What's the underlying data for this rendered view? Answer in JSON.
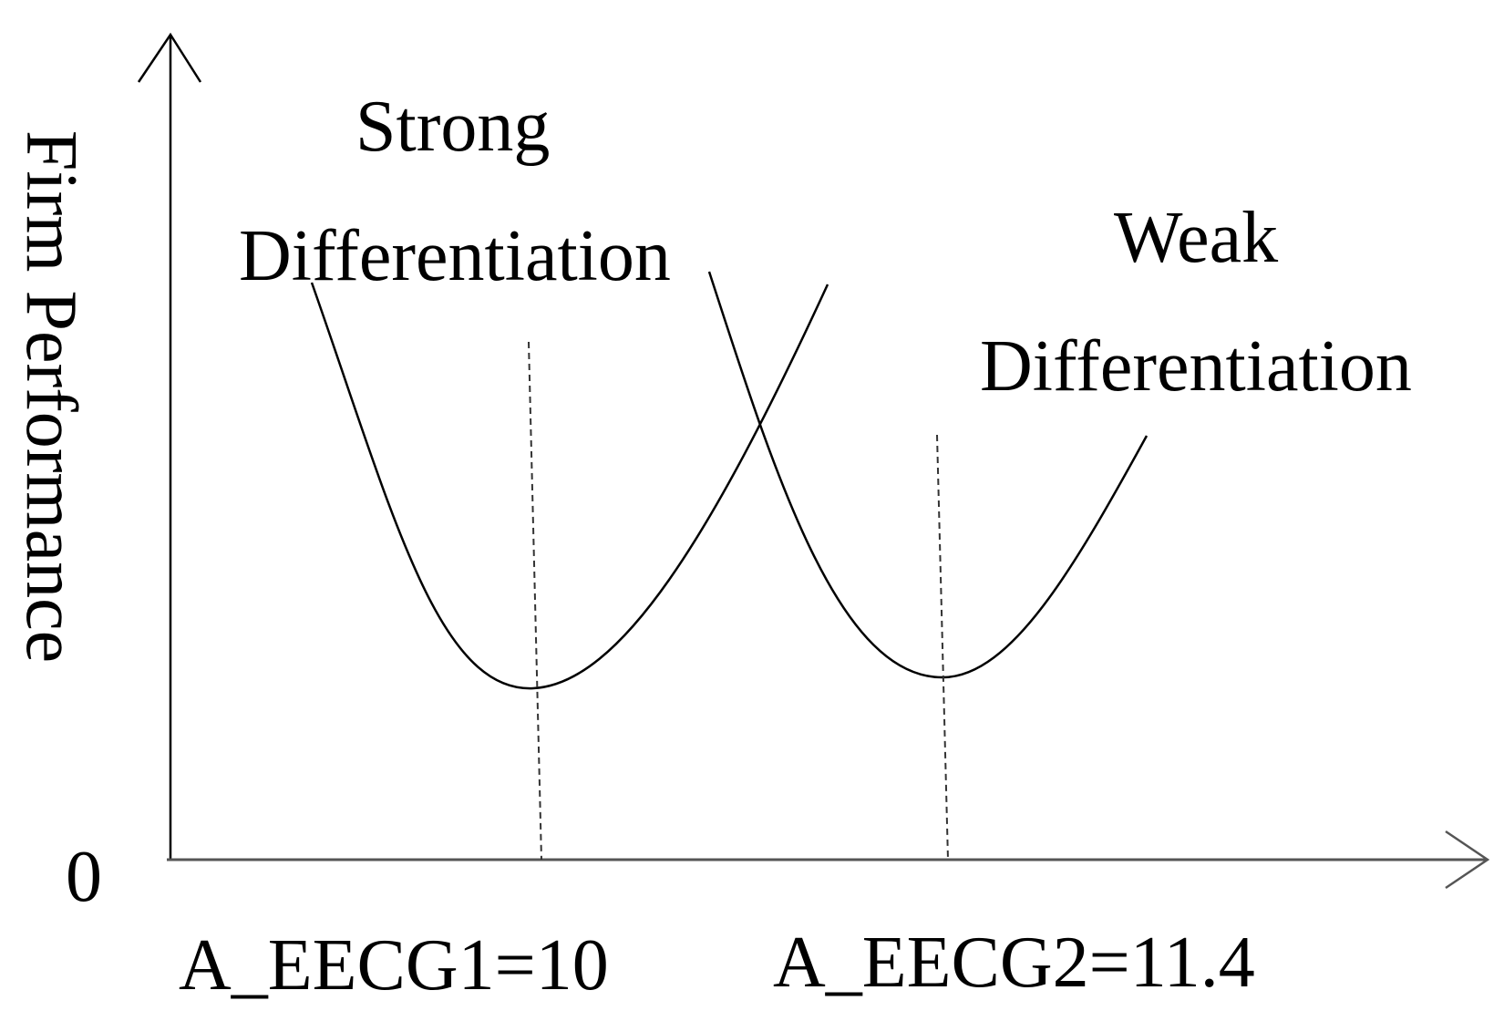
{
  "axes": {
    "y_label": "Firm Performance",
    "origin_label": "0"
  },
  "curves": [
    {
      "label_line1": "Strong",
      "label_line2": "Differentiation",
      "min_marker": "A_EECG1=10"
    },
    {
      "label_line1": "Weak",
      "label_line2": "Differentiation",
      "min_marker": "A_EECG2=11.4"
    }
  ],
  "colors": {
    "ink": "#000000",
    "axis": "#555555",
    "guide": "#333333"
  }
}
